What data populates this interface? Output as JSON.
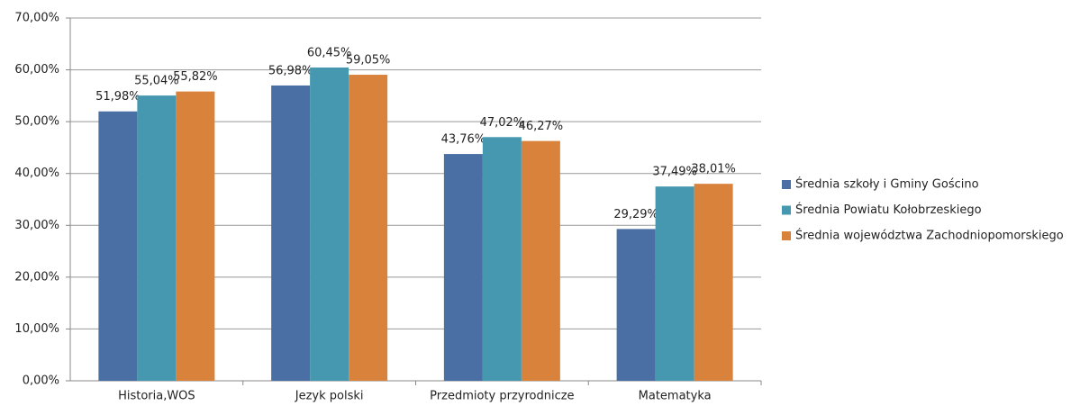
{
  "chart_data": {
    "type": "bar",
    "categories": [
      "Historia,WOS",
      "Jezyk polski",
      "Przedmioty przyrodnicze",
      "Matematyka"
    ],
    "series": [
      {
        "name": "Średnia szkoły i Gminy Gościno",
        "color": "#4a6fa5",
        "values": [
          51.98,
          56.98,
          43.76,
          29.29
        ],
        "value_labels": [
          "51,98%",
          "56,98%",
          "43,76%",
          "29,29%"
        ]
      },
      {
        "name": "Średnia Powiatu Kołobrzeskiego",
        "color": "#4598b0",
        "values": [
          55.04,
          60.45,
          47.02,
          37.49
        ],
        "value_labels": [
          "55,04%",
          "60,45%",
          "47,02%",
          "37,49%"
        ]
      },
      {
        "name": "Średnia województwa Zachodniopomorskiego",
        "color": "#d9823c",
        "values": [
          55.82,
          59.05,
          46.27,
          38.01
        ],
        "value_labels": [
          "55,82%",
          "59,05%",
          "46,27%",
          "38,01%"
        ]
      }
    ],
    "ylim": [
      0,
      70
    ],
    "yticks": [
      {
        "value": 0,
        "label": "0,00%"
      },
      {
        "value": 10,
        "label": "10,00%"
      },
      {
        "value": 20,
        "label": "20,00%"
      },
      {
        "value": 30,
        "label": "30,00%"
      },
      {
        "value": 40,
        "label": "40,00%"
      },
      {
        "value": 50,
        "label": "50,00%"
      },
      {
        "value": 60,
        "label": "60,00%"
      },
      {
        "value": 70,
        "label": "70,00%"
      }
    ],
    "grid": true,
    "legend": "right"
  }
}
